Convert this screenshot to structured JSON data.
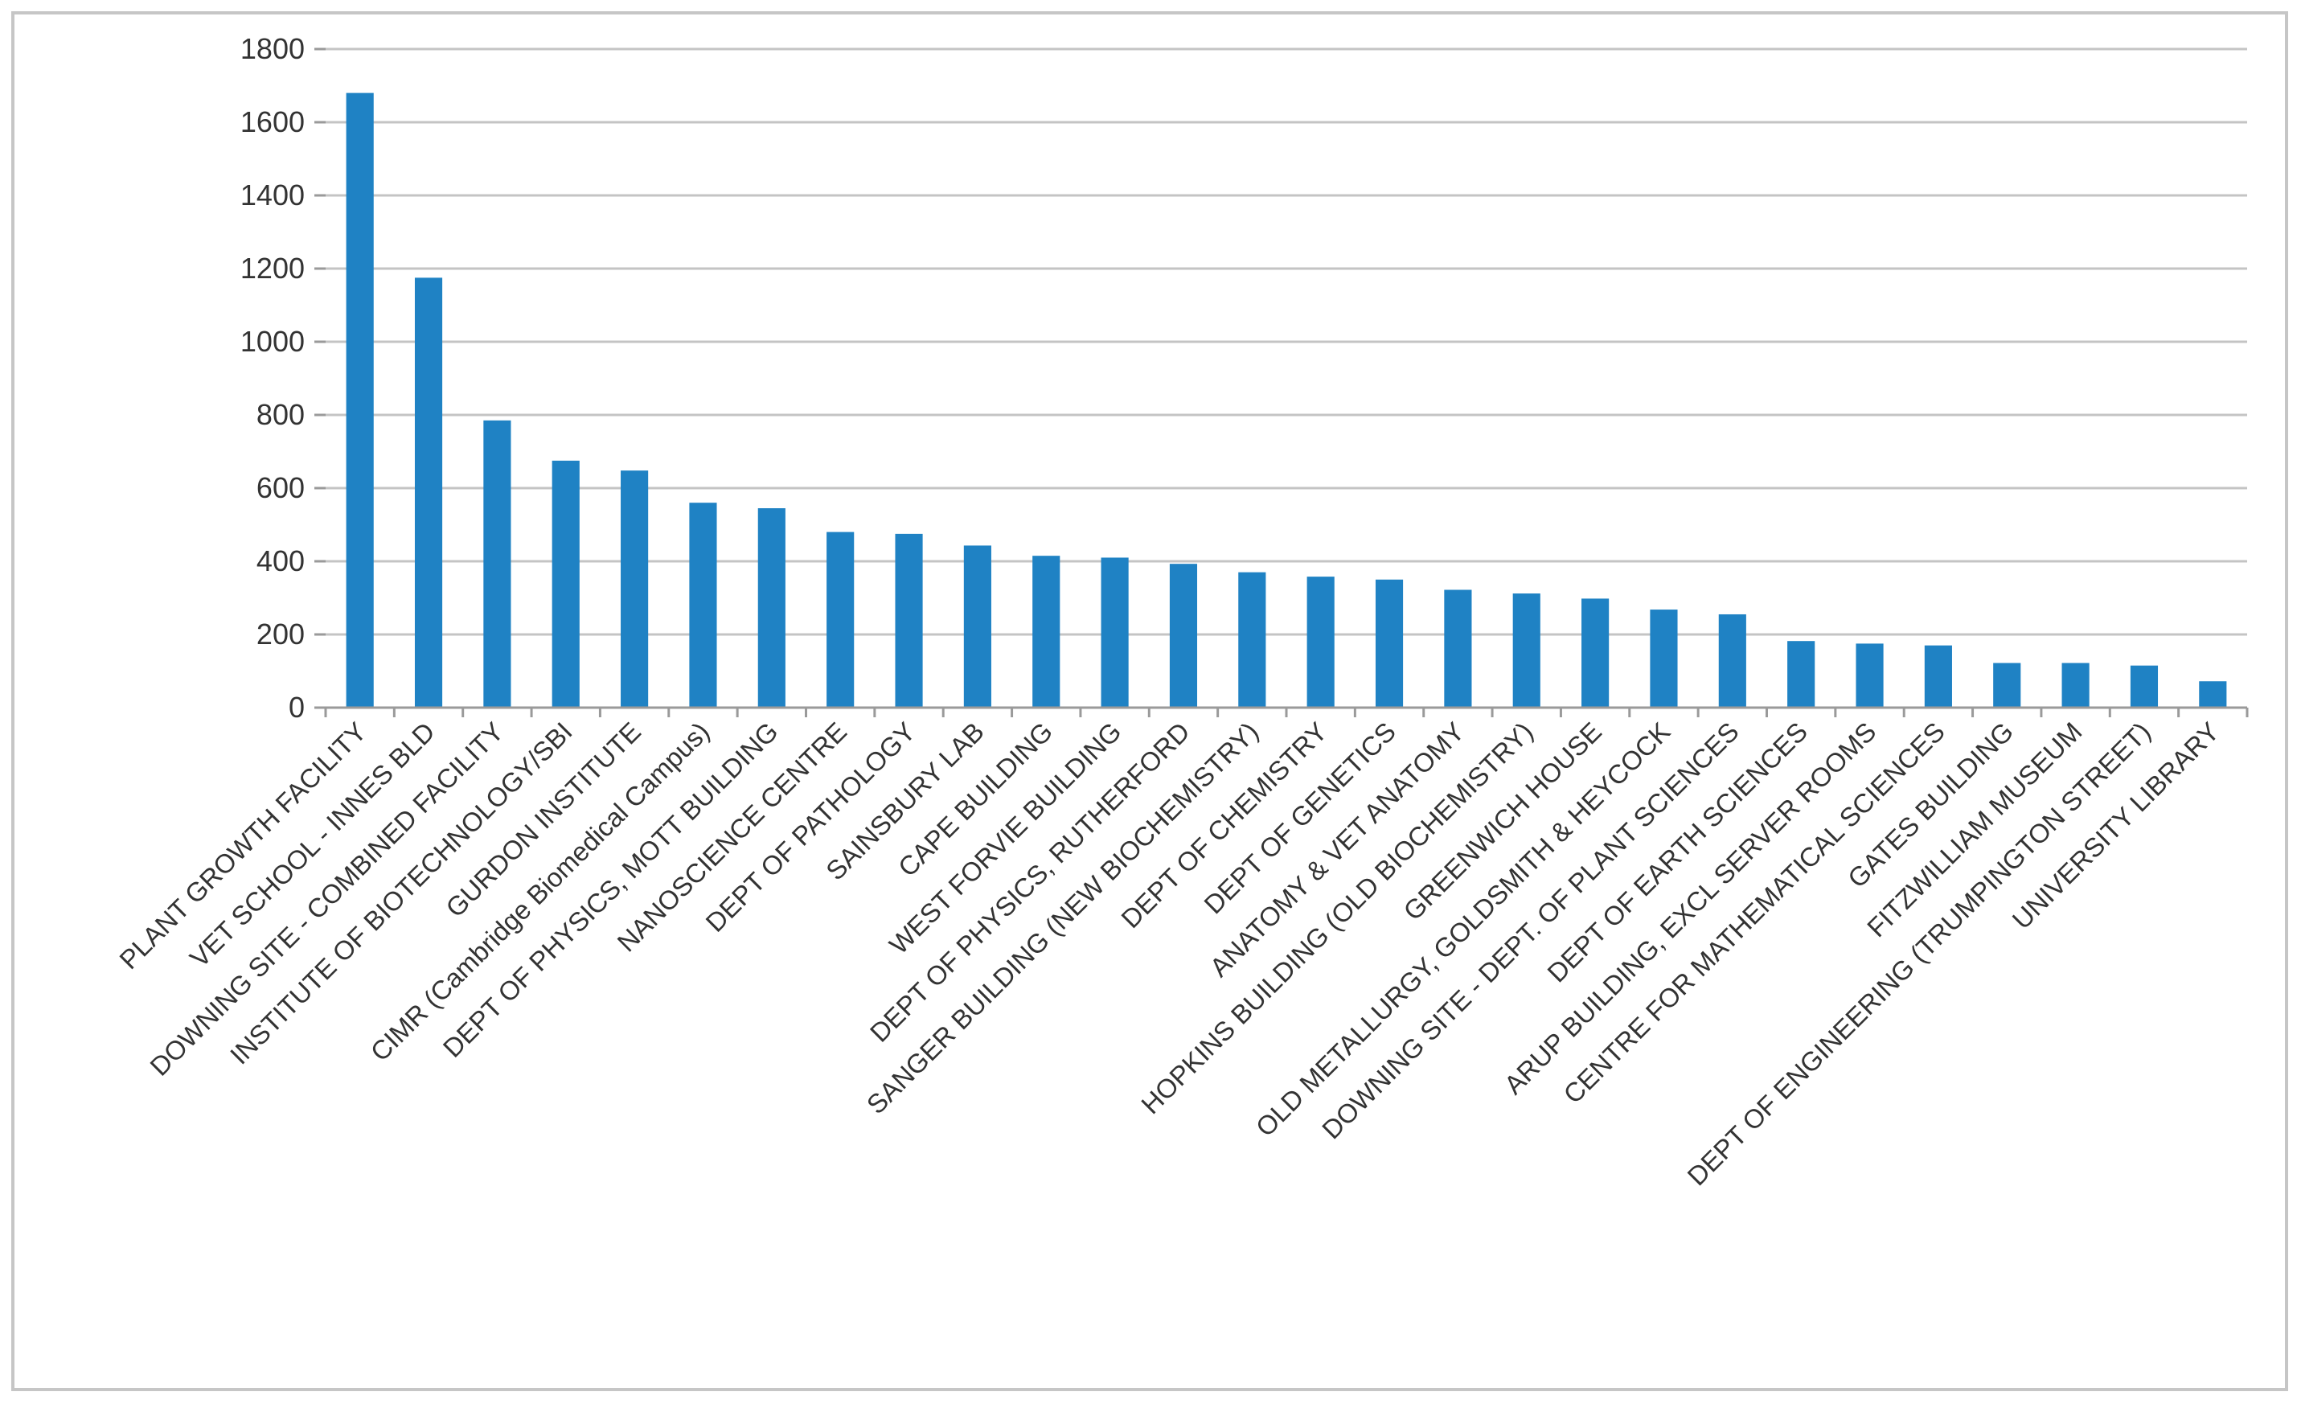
{
  "chart_data": {
    "type": "bar",
    "title": "",
    "xlabel": "",
    "ylabel": "",
    "ylim": [
      0,
      1800
    ],
    "yticks": [
      0,
      200,
      400,
      600,
      800,
      1000,
      1200,
      1400,
      1600,
      1800
    ],
    "grid": true,
    "legend": "none",
    "bar_color": "#1f82c4",
    "categories": [
      "PLANT GROWTH FACILITY",
      "VET SCHOOL - INNES BLD",
      "DOWNING SITE - COMBINED FACILITY",
      "INSTITUTE OF BIOTECHNOLOGY/SBI",
      "GURDON INSTITUTE",
      "CIMR (Cambridge Biomedical Campus)",
      "DEPT OF PHYSICS, MOTT BUILDING",
      "NANOSCIENCE CENTRE",
      "DEPT OF PATHOLOGY",
      "SAINSBURY LAB",
      "CAPE BUILDING",
      "WEST FORVIE BUILDING",
      "DEPT OF PHYSICS, RUTHERFORD",
      "SANGER BUILDING (NEW BIOCHEMISTRY)",
      "DEPT OF CHEMISTRY",
      "DEPT OF GENETICS",
      "ANATOMY & VET ANATOMY",
      "HOPKINS BUILDING (OLD BIOCHEMISTRY)",
      "GREENWICH HOUSE",
      "OLD METALLURGY, GOLDSMITH & HEYCOCK",
      "DOWNING SITE - DEPT. OF PLANT SCIENCES",
      "DEPT OF EARTH SCIENCES",
      "ARUP BUILDING, EXCL SERVER ROOMS",
      "CENTRE FOR MATHEMATICAL SCIENCES",
      "GATES BUILDING",
      "FITZWILLIAM MUSEUM",
      "DEPT OF ENGINEERING (TRUMPINGTON STREET)",
      "UNIVERSITY LIBRARY"
    ],
    "values": [
      1680,
      1175,
      785,
      675,
      648,
      560,
      545,
      480,
      475,
      443,
      415,
      410,
      393,
      370,
      358,
      350,
      322,
      312,
      298,
      268,
      255,
      182,
      175,
      170,
      122,
      122,
      115,
      72
    ]
  }
}
